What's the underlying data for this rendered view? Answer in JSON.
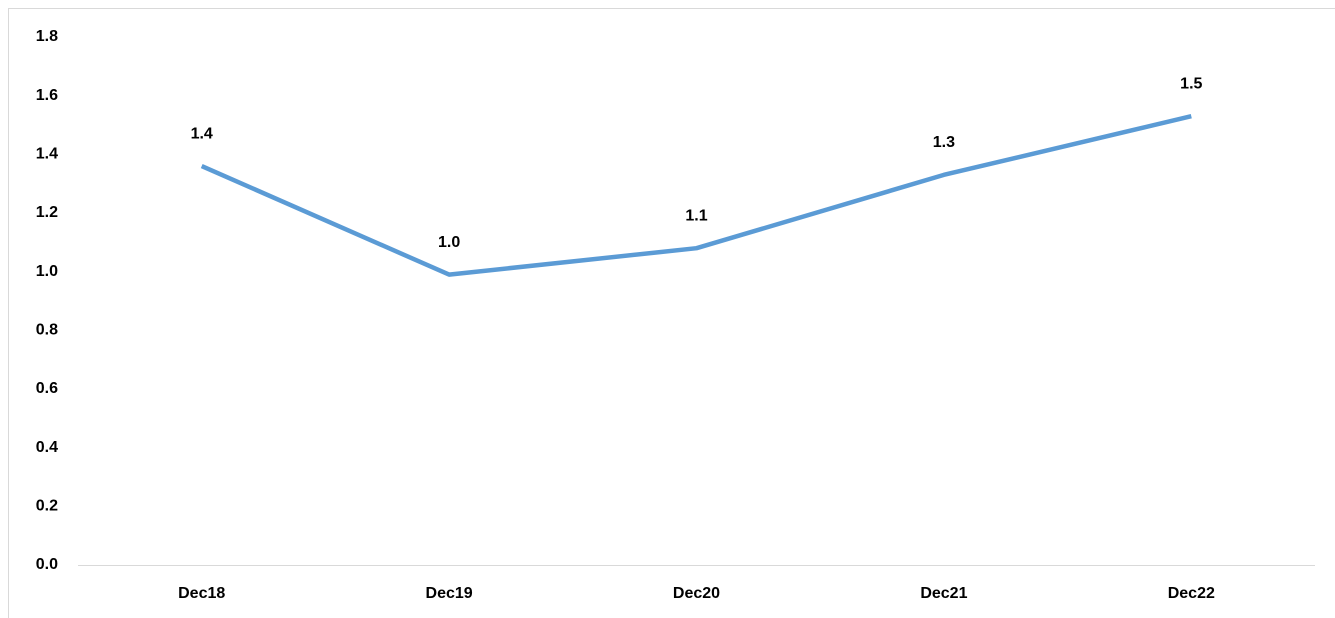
{
  "chart_data": {
    "type": "line",
    "categories": [
      "Dec18",
      "Dec19",
      "Dec20",
      "Dec21",
      "Dec22"
    ],
    "series": [
      {
        "color": "#5b9bd5",
        "values": [
          1.36,
          0.99,
          1.08,
          1.33,
          1.53
        ],
        "value_labels": [
          "1.4",
          "1.0",
          "1.1",
          "1.3",
          "1.5"
        ]
      }
    ],
    "ylim": [
      0,
      1.8
    ],
    "yticks": [
      {
        "value": 0,
        "label": "0.0"
      },
      0.2,
      0.4,
      0.6,
      0.8,
      {
        "value": 1,
        "label": "1.0"
      },
      1.2,
      1.4,
      1.6,
      1.8
    ],
    "grid": false
  }
}
